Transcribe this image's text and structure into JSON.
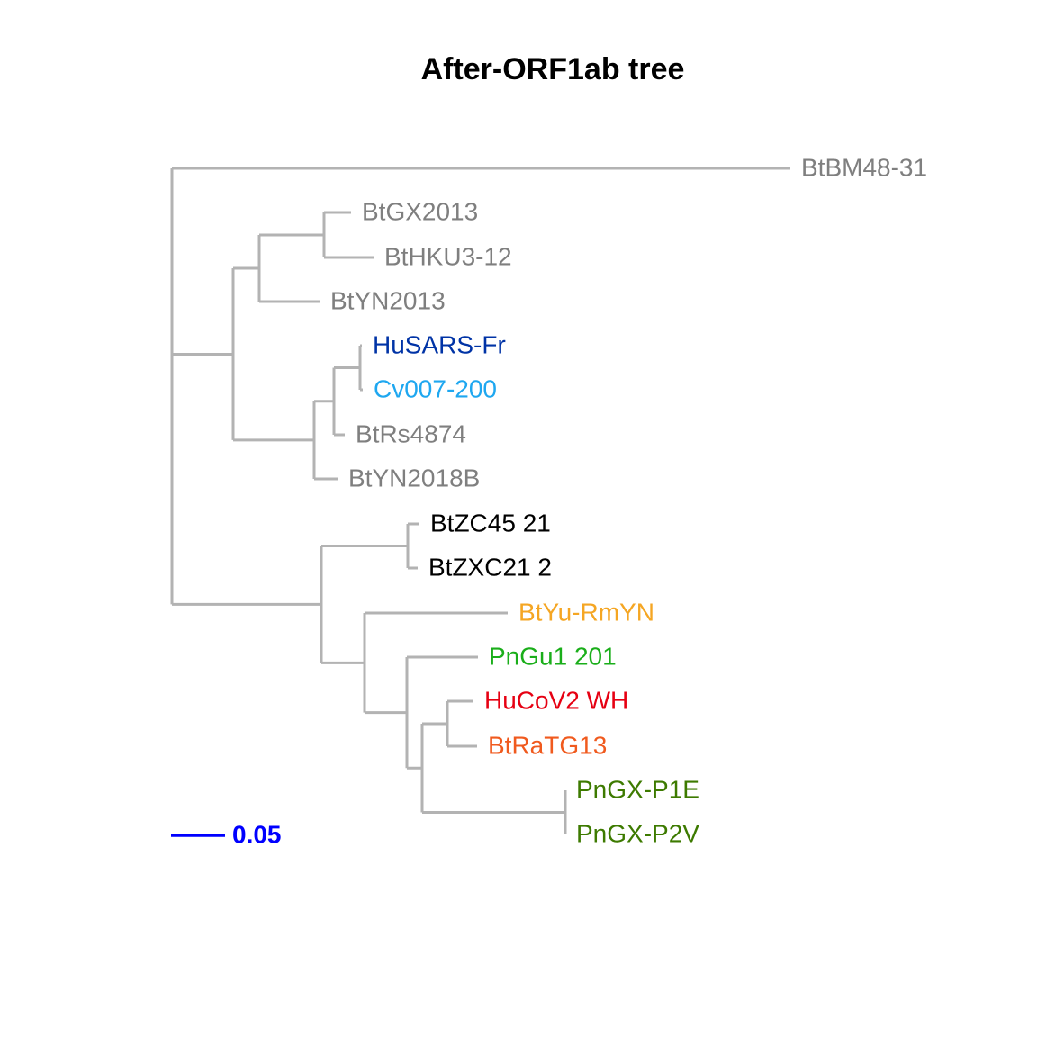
{
  "title": "After-ORF1ab tree",
  "colors": {
    "branch": "#b3b3b3",
    "scale_bar": "#0000ff",
    "gray": "#7f7f7f",
    "black": "#000000",
    "dark_blue": "#0033a6",
    "light_blue": "#1ea7f0",
    "orange": "#f5a623",
    "green": "#1aae1a",
    "red": "#e60012",
    "red_orange": "#f05a1e",
    "olive_green": "#3d7a00"
  },
  "tips": [
    {
      "id": "BtBM48-31",
      "label": "BtBM48-31",
      "color": "gray"
    },
    {
      "id": "BtGX2013",
      "label": "BtGX2013",
      "color": "gray"
    },
    {
      "id": "BtHKU3-12",
      "label": "BtHKU3-12",
      "color": "gray"
    },
    {
      "id": "BtYN2013",
      "label": "BtYN2013",
      "color": "gray"
    },
    {
      "id": "HuSARS-Fr",
      "label": "HuSARS-Fr",
      "color": "dark_blue"
    },
    {
      "id": "Cv007-200",
      "label": "Cv007-200",
      "color": "light_blue"
    },
    {
      "id": "BtRs4874",
      "label": "BtRs4874",
      "color": "gray"
    },
    {
      "id": "BtYN2018B",
      "label": "BtYN2018B",
      "color": "gray"
    },
    {
      "id": "BtZC45 21",
      "label": "BtZC45 21",
      "color": "black"
    },
    {
      "id": "BtZXC21 2",
      "label": "BtZXC21 2",
      "color": "black"
    },
    {
      "id": "BtYu-RmYN",
      "label": "BtYu-RmYN",
      "color": "orange"
    },
    {
      "id": "PnGu1 201",
      "label": "PnGu1 201",
      "color": "green"
    },
    {
      "id": "HuCoV2 WH",
      "label": "HuCoV2 WH",
      "color": "red"
    },
    {
      "id": "BtRaTG13",
      "label": "BtRaTG13",
      "color": "red_orange"
    },
    {
      "id": "PnGX-P1E",
      "label": "PnGX-P1E",
      "color": "olive_green"
    },
    {
      "id": "PnGX-P2V",
      "label": "PnGX-P2V",
      "color": "olive_green"
    }
  ],
  "scale_bar": {
    "value": 0.05,
    "label": "0.05"
  }
}
